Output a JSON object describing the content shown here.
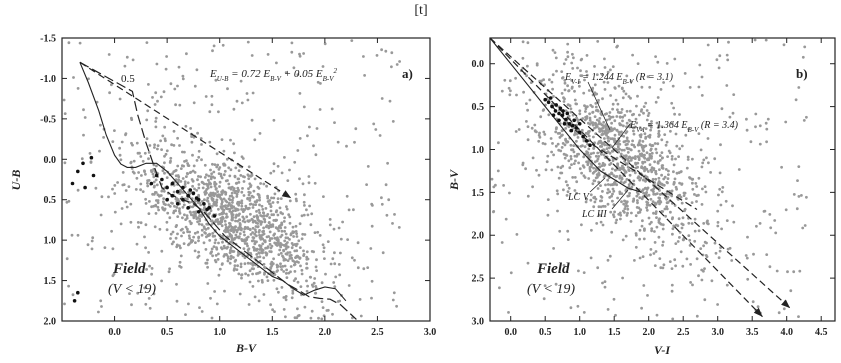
{
  "figure_marker": "[t]",
  "chart_data": [
    {
      "type": "scatter",
      "panel_label": "a)",
      "xlabel": "B-V",
      "ylabel": "U-B",
      "xlim": [
        -0.5,
        3.0
      ],
      "ylim": [
        2.0,
        -1.5
      ],
      "y_inverted": true,
      "x_ticks": [
        "0.0",
        "0.5",
        "1.0",
        "1.5",
        "2.0",
        "2.5",
        "3.0"
      ],
      "y_ticks": [
        "-1.5",
        "-1.0",
        "-0.5",
        "0.0",
        "0.5",
        "1.0",
        "1.5",
        "2.0"
      ],
      "annotations": {
        "relation": "E_{U-B} = 0.72 E_{B-V} + 0.05 E_{B-V}^2",
        "relation_lhs": "E",
        "relation_lhs_sub": "U-B",
        "relation_mid": " = 0.72 E",
        "relation_mid_sub": "B-V",
        "relation_rhs": " + 0.05 E",
        "relation_rhs_sub": "B-V",
        "relation_rhs_sup": "2",
        "reddening_label": "0.5",
        "field_title": "Field",
        "field_condition": "(V < 19)"
      },
      "series": [
        {
          "role": "intrinsic-colour-locus",
          "style": "solid",
          "x": [
            -0.33,
            -0.25,
            -0.15,
            -0.08,
            0.0,
            0.06,
            0.12,
            0.2,
            0.3,
            0.4,
            0.5,
            0.6,
            0.7,
            0.8,
            0.9,
            1.0,
            1.1,
            1.2,
            1.3,
            1.4,
            1.5,
            1.6,
            1.7,
            1.8,
            1.9,
            2.0,
            2.1,
            2.2
          ],
          "y": [
            -1.2,
            -0.95,
            -0.6,
            -0.3,
            -0.05,
            0.06,
            0.1,
            0.1,
            0.05,
            0.05,
            0.15,
            0.3,
            0.45,
            0.6,
            0.8,
            0.95,
            1.05,
            1.15,
            1.25,
            1.35,
            1.45,
            1.5,
            1.6,
            1.68,
            1.62,
            1.58,
            1.6,
            1.75
          ]
        },
        {
          "role": "reddened-locus-E0.5",
          "style": "long-dash",
          "x": [
            -0.33,
            0.17,
            0.22,
            0.3,
            0.38,
            0.45,
            0.55,
            0.65,
            0.75,
            0.85,
            0.95,
            1.05,
            1.15,
            1.25,
            1.35,
            1.45,
            1.55,
            1.65,
            1.75,
            1.85,
            1.95,
            2.05,
            2.15,
            2.3
          ],
          "y": [
            -1.2,
            -0.84,
            -0.55,
            -0.2,
            0.1,
            0.35,
            0.45,
            0.5,
            0.55,
            0.65,
            0.8,
            0.95,
            1.05,
            1.15,
            1.25,
            1.35,
            1.45,
            1.55,
            1.62,
            1.7,
            1.72,
            1.73,
            1.8,
            1.98
          ]
        },
        {
          "role": "reddening-vector",
          "style": "dashed-arrow",
          "x": [
            -0.33,
            1.68
          ],
          "y": [
            -1.2,
            0.48
          ]
        }
      ],
      "black_points": [
        [
          -0.4,
          0.3
        ],
        [
          -0.35,
          0.15
        ],
        [
          -0.3,
          0.05
        ],
        [
          -0.28,
          0.35
        ],
        [
          -0.22,
          -0.02
        ],
        [
          -0.2,
          0.2
        ],
        [
          -0.38,
          1.75
        ],
        [
          -0.35,
          1.65
        ],
        [
          0.35,
          0.3
        ],
        [
          0.4,
          0.2
        ],
        [
          0.45,
          0.25
        ],
        [
          0.5,
          0.35
        ],
        [
          0.55,
          0.3
        ],
        [
          0.6,
          0.4
        ],
        [
          0.65,
          0.35
        ],
        [
          0.7,
          0.45
        ],
        [
          0.75,
          0.42
        ],
        [
          0.8,
          0.5
        ],
        [
          0.85,
          0.55
        ],
        [
          0.9,
          0.6
        ],
        [
          0.6,
          0.55
        ],
        [
          0.7,
          0.6
        ],
        [
          0.8,
          0.65
        ],
        [
          0.5,
          0.5
        ],
        [
          0.55,
          0.45
        ],
        [
          0.65,
          0.5
        ],
        [
          0.72,
          0.38
        ],
        [
          0.78,
          0.48
        ],
        [
          0.88,
          0.62
        ],
        [
          0.95,
          0.7
        ]
      ],
      "grey_cloud": {
        "centre": [
          1.1,
          0.75
        ],
        "spread": [
          0.45,
          0.45
        ],
        "count": 1600,
        "color": "#999999"
      }
    },
    {
      "type": "scatter",
      "panel_label": "b)",
      "xlabel": "V-I",
      "ylabel": "B-V",
      "xlim": [
        -0.3,
        4.7
      ],
      "ylim": [
        3.0,
        -0.3
      ],
      "y_inverted": true,
      "x_ticks": [
        "0.0",
        "0.5",
        "1.0",
        "1.5",
        "2.0",
        "2.5",
        "3.0",
        "3.5",
        "4.0",
        "4.5"
      ],
      "y_ticks": [
        "0.0",
        "0.5",
        "1.0",
        "1.5",
        "2.0",
        "2.5",
        "3.0"
      ],
      "annotations": {
        "relation_1": "E_{V-I} = 1.244 E_{B-V} (R = 3.1)",
        "relation_1_lhs": "E",
        "relation_1_lhs_sub": "V-I",
        "relation_1_mid": " = 1.244 E",
        "relation_1_mid_sub": "B-V",
        "relation_1_rhs": " (R = 3.1)",
        "relation_2": "E_{V-I} = 1.364 E_{B-V} (R = 3.4)",
        "relation_2_lhs": "E",
        "relation_2_lhs_sub": "V-I",
        "relation_2_mid": " = 1.364 E",
        "relation_2_mid_sub": "B-V",
        "relation_2_rhs": " (R = 3.4)",
        "lc_v": "LC V",
        "lc_iii": "LC III",
        "field_title": "Field",
        "field_condition": "(V < 19)"
      },
      "series": [
        {
          "role": "LC V",
          "style": "solid",
          "x": [
            -0.3,
            0.0,
            0.5,
            1.0,
            1.3,
            1.5,
            1.7,
            1.9
          ],
          "y": [
            -0.3,
            0.0,
            0.5,
            1.0,
            1.25,
            1.35,
            1.45,
            1.5
          ]
        },
        {
          "role": "LC III",
          "style": "dashed",
          "x": [
            0.6,
            0.9,
            1.2,
            1.5,
            1.8,
            2.1,
            2.4,
            2.7
          ],
          "y": [
            0.5,
            0.75,
            0.95,
            1.1,
            1.25,
            1.4,
            1.55,
            1.7
          ]
        },
        {
          "role": "reddening-vector-R3.1",
          "style": "dashed-arrow",
          "x": [
            -0.3,
            3.65
          ],
          "y": [
            -0.3,
            2.95
          ]
        },
        {
          "role": "reddening-vector-R3.4",
          "style": "dashed-arrow",
          "x": [
            -0.3,
            4.05
          ],
          "y": [
            -0.3,
            2.85
          ]
        }
      ],
      "black_points": [
        [
          0.55,
          0.45
        ],
        [
          0.6,
          0.5
        ],
        [
          0.65,
          0.55
        ],
        [
          0.7,
          0.58
        ],
        [
          0.75,
          0.6
        ],
        [
          0.8,
          0.65
        ],
        [
          0.85,
          0.7
        ],
        [
          0.9,
          0.72
        ],
        [
          0.95,
          0.75
        ],
        [
          1.0,
          0.8
        ],
        [
          1.05,
          0.85
        ],
        [
          0.62,
          0.6
        ],
        [
          0.7,
          0.66
        ],
        [
          0.78,
          0.7
        ],
        [
          0.88,
          0.78
        ],
        [
          1.1,
          0.9
        ],
        [
          1.15,
          0.95
        ],
        [
          0.72,
          0.52
        ],
        [
          0.82,
          0.58
        ],
        [
          0.92,
          0.66
        ],
        [
          1.0,
          0.7
        ],
        [
          0.58,
          0.4
        ],
        [
          0.66,
          0.48
        ],
        [
          0.76,
          0.55
        ],
        [
          0.5,
          0.42
        ]
      ],
      "grey_cloud": {
        "centre": [
          1.6,
          1.1
        ],
        "spread": [
          0.6,
          0.5
        ],
        "count": 1400,
        "color": "#999999"
      }
    }
  ]
}
